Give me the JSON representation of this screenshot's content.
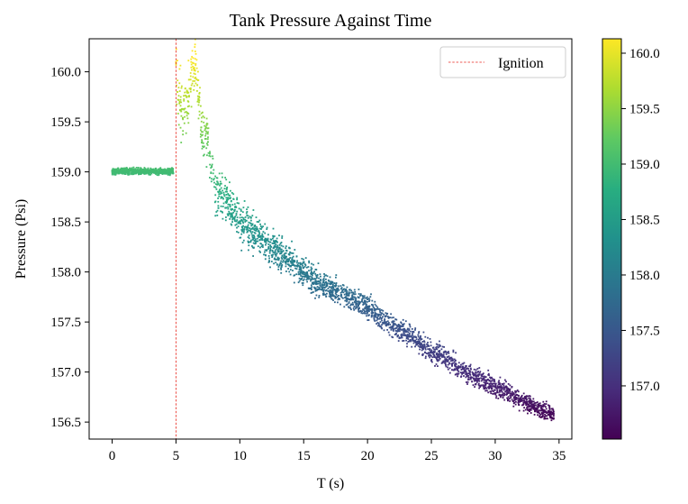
{
  "chart_data": {
    "type": "scatter",
    "title": "Tank Pressure Against Time",
    "xlabel": "T (s)",
    "ylabel": "Pressure (Psi)",
    "xlim": [
      -1.8,
      36.0
    ],
    "ylim": [
      156.33,
      160.33
    ],
    "xticks": [
      0,
      5,
      10,
      15,
      20,
      25,
      30,
      35
    ],
    "xtick_labels": [
      "0",
      "5",
      "10",
      "15",
      "20",
      "25",
      "30",
      "35"
    ],
    "yticks": [
      156.5,
      157.0,
      157.5,
      158.0,
      158.5,
      159.0,
      159.5,
      160.0
    ],
    "ytick_labels": [
      "156.5",
      "157.0",
      "157.5",
      "158.0",
      "158.5",
      "159.0",
      "159.5",
      "160.0"
    ],
    "grid": false,
    "legend": {
      "position": "top-right",
      "entries": [
        {
          "label": "Ignition",
          "style": "dashed",
          "color": "#e8261c"
        }
      ]
    },
    "ignition_line": {
      "x": 5.0,
      "color": "#e8261c",
      "style": "dashed"
    },
    "colorbar": {
      "colormap": "viridis",
      "range": [
        156.52,
        160.13
      ],
      "ticks": [
        157.0,
        157.5,
        158.0,
        158.5,
        159.0,
        159.5,
        160.0
      ],
      "tick_labels": [
        "157.0",
        "157.5",
        "158.0",
        "158.5",
        "159.0",
        "159.5",
        "160.0"
      ]
    },
    "series": [
      {
        "marker": "dot",
        "color_by": "y",
        "description_of_trend": "steady near 159.0 from 0 to 5 s, then scattered rise to ~160 at ignition, then roughly linear decline to ~156.6 at 34.5 s",
        "points": [
          [
            0.0,
            159.0
          ],
          [
            0.5,
            159.02
          ],
          [
            1.0,
            158.99
          ],
          [
            1.5,
            159.01
          ],
          [
            2.0,
            159.0
          ],
          [
            2.5,
            159.02
          ],
          [
            3.0,
            158.99
          ],
          [
            3.5,
            159.01
          ],
          [
            4.0,
            159.0
          ],
          [
            4.5,
            159.01
          ],
          [
            5.0,
            160.1
          ],
          [
            5.3,
            159.7
          ],
          [
            5.8,
            159.6
          ],
          [
            6.5,
            160.13
          ],
          [
            7.0,
            159.4
          ],
          [
            7.5,
            159.3
          ],
          [
            8.0,
            158.85
          ],
          [
            9.0,
            158.7
          ],
          [
            10.0,
            158.5
          ],
          [
            11.0,
            158.4
          ],
          [
            12.0,
            158.3
          ],
          [
            13.0,
            158.2
          ],
          [
            14.0,
            158.1
          ],
          [
            15.0,
            158.0
          ],
          [
            16.0,
            157.9
          ],
          [
            17.0,
            157.85
          ],
          [
            18.0,
            157.8
          ],
          [
            19.0,
            157.7
          ],
          [
            20.0,
            157.65
          ],
          [
            21.0,
            157.55
          ],
          [
            22.0,
            157.45
          ],
          [
            23.0,
            157.4
          ],
          [
            24.0,
            157.3
          ],
          [
            25.0,
            157.2
          ],
          [
            26.0,
            157.15
          ],
          [
            27.0,
            157.05
          ],
          [
            28.0,
            156.98
          ],
          [
            29.0,
            156.92
          ],
          [
            30.0,
            156.85
          ],
          [
            31.0,
            156.8
          ],
          [
            32.0,
            156.72
          ],
          [
            33.0,
            156.66
          ],
          [
            34.0,
            156.6
          ],
          [
            34.5,
            156.58
          ]
        ]
      }
    ]
  }
}
